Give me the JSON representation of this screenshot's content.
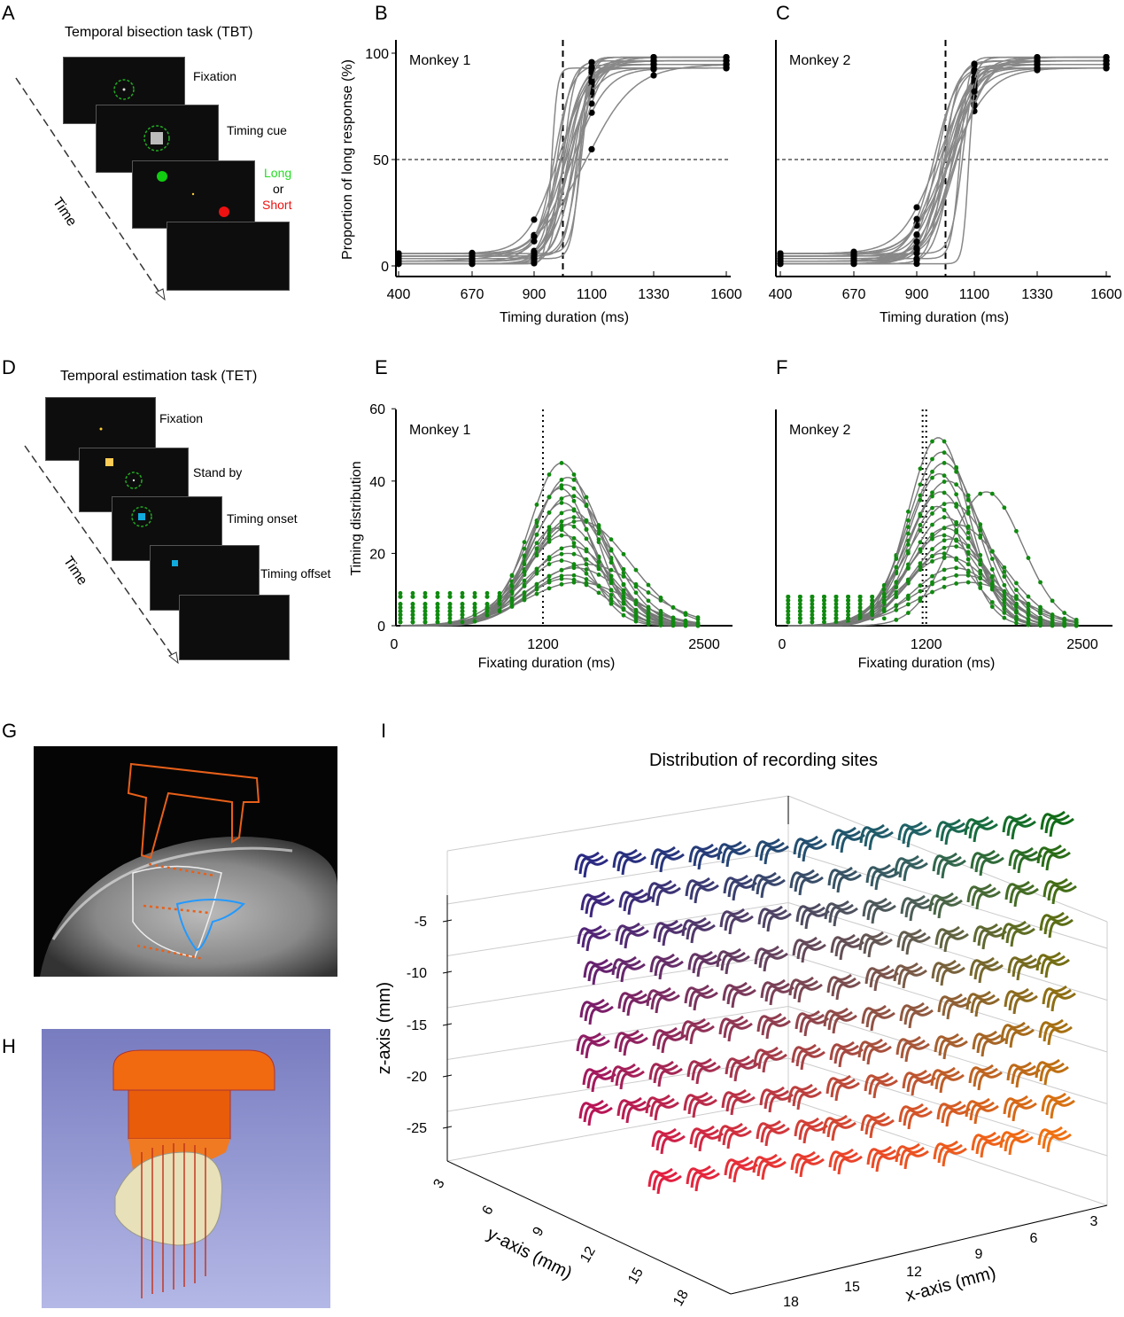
{
  "panels": {
    "A": "A",
    "B": "B",
    "C": "C",
    "D": "D",
    "E": "E",
    "F": "F",
    "G": "G",
    "H": "H",
    "I": "I"
  },
  "tbt": {
    "title": "Temporal bisection task (TBT)",
    "steps": [
      "Fixation",
      "Timing cue"
    ],
    "long": "Long",
    "or": "or",
    "short": "Short",
    "time": "Time",
    "long_color": "#22dd22",
    "short_color": "#ee1111"
  },
  "tet": {
    "title": "Temporal estimation task (TET)",
    "steps": [
      "Fixation",
      "Stand by",
      "Timing onset",
      "Timing offset"
    ],
    "time": "Time"
  },
  "chart_data": [
    {
      "panel": "B",
      "type": "line",
      "annotation": "Monkey 1",
      "xlabel": "Timing duration (ms)",
      "ylabel": "Proportion of long response (%)",
      "xticks": [
        400,
        670,
        900,
        1100,
        1330,
        1600
      ],
      "yticks": [
        0,
        50,
        100
      ],
      "ylim": [
        0,
        100
      ],
      "reference_lines": {
        "x": 1000,
        "y": 50
      },
      "curve_color": "#888888",
      "point_color": "#000000",
      "sigmoid_fits_mu_s": [
        [
          1000,
          30
        ],
        [
          1020,
          40
        ],
        [
          980,
          25
        ],
        [
          1050,
          20
        ],
        [
          1010,
          50
        ],
        [
          1040,
          35
        ],
        [
          990,
          45
        ],
        [
          1060,
          15
        ],
        [
          1030,
          60
        ],
        [
          970,
          30
        ],
        [
          1000,
          20
        ],
        [
          1045,
          45
        ],
        [
          1015,
          30
        ],
        [
          1055,
          25
        ],
        [
          985,
          55
        ],
        [
          1025,
          40
        ],
        [
          1005,
          35
        ],
        [
          1035,
          28
        ],
        [
          995,
          38
        ],
        [
          1065,
          18
        ],
        [
          960,
          10
        ],
        [
          1075,
          90
        ]
      ]
    },
    {
      "panel": "C",
      "type": "line",
      "annotation": "Monkey 2",
      "xlabel": "Timing duration (ms)",
      "ylabel": "",
      "xticks": [
        400,
        670,
        900,
        1100,
        1330,
        1600
      ],
      "yticks": [],
      "ylim": [
        0,
        100
      ],
      "reference_lines": {
        "x": 1000,
        "y": 50
      },
      "curve_color": "#888888",
      "point_color": "#000000",
      "sigmoid_fits_mu_s": [
        [
          990,
          40
        ],
        [
          1010,
          50
        ],
        [
          970,
          35
        ],
        [
          1030,
          45
        ],
        [
          1000,
          60
        ],
        [
          1020,
          30
        ],
        [
          980,
          55
        ],
        [
          1050,
          15
        ],
        [
          1015,
          70
        ],
        [
          960,
          40
        ],
        [
          995,
          25
        ],
        [
          1040,
          50
        ],
        [
          1005,
          45
        ],
        [
          1025,
          35
        ],
        [
          975,
          65
        ],
        [
          1035,
          55
        ],
        [
          985,
          30
        ],
        [
          1010,
          38
        ],
        [
          1000,
          48
        ],
        [
          1060,
          20
        ],
        [
          1080,
          10
        ]
      ]
    },
    {
      "panel": "E",
      "type": "line",
      "annotation": "Monkey 1",
      "xlabel": "Fixating duration (ms)",
      "ylabel": "Timing distribution",
      "xticks": [
        0,
        1200,
        2500
      ],
      "yticks": [
        0,
        20,
        40,
        60
      ],
      "ylim": [
        0,
        60
      ],
      "xlim": [
        0,
        2700
      ],
      "reference_lines": {
        "x": 1200
      },
      "curve_color": "#777777",
      "point_color": "#0f8a0f",
      "gaussian_fits_mu_sd_peak": [
        [
          1350,
          260,
          45
        ],
        [
          1400,
          280,
          41
        ],
        [
          1380,
          300,
          39
        ],
        [
          1420,
          320,
          36
        ],
        [
          1360,
          270,
          34
        ],
        [
          1450,
          350,
          30
        ],
        [
          1390,
          290,
          28
        ],
        [
          1500,
          400,
          29
        ],
        [
          1370,
          310,
          25
        ],
        [
          1430,
          330,
          22
        ],
        [
          1400,
          360,
          20
        ],
        [
          1350,
          300,
          18
        ],
        [
          1460,
          380,
          16
        ],
        [
          1410,
          340,
          14
        ],
        [
          1380,
          320,
          13
        ],
        [
          1550,
          450,
          17
        ],
        [
          1340,
          250,
          38
        ],
        [
          1420,
          300,
          32
        ],
        [
          1480,
          420,
          12
        ],
        [
          1300,
          260,
          27
        ]
      ]
    },
    {
      "panel": "F",
      "type": "line",
      "annotation": "Monkey 2",
      "xlabel": "Fixating duration (ms)",
      "ylabel": "",
      "xticks": [
        0,
        1200,
        2500
      ],
      "yticks": [],
      "ylim": [
        0,
        60
      ],
      "xlim": [
        0,
        2700
      ],
      "reference_lines": {
        "x": [
          1170,
          1200
        ]
      },
      "curve_color": "#777777",
      "point_color": "#0f8a0f",
      "gaussian_fits_mu_sd_peak": [
        [
          1300,
          250,
          52
        ],
        [
          1330,
          280,
          48
        ],
        [
          1350,
          300,
          45
        ],
        [
          1380,
          320,
          40
        ],
        [
          1320,
          270,
          37
        ],
        [
          1400,
          350,
          34
        ],
        [
          1360,
          290,
          30
        ],
        [
          1450,
          380,
          28
        ],
        [
          1340,
          310,
          25
        ],
        [
          1420,
          330,
          22
        ],
        [
          1700,
          300,
          37
        ],
        [
          1310,
          260,
          42
        ],
        [
          1380,
          360,
          19
        ],
        [
          1440,
          340,
          16
        ],
        [
          1290,
          240,
          33
        ],
        [
          1500,
          400,
          14
        ],
        [
          1360,
          300,
          27
        ],
        [
          1410,
          320,
          24
        ],
        [
          1330,
          280,
          20
        ],
        [
          1550,
          420,
          12
        ]
      ]
    },
    {
      "panel": "I",
      "type": "scatter",
      "title": "Distribution of recording sites",
      "xlabel": "x-axis (mm)",
      "ylabel": "y-axis (mm)",
      "zlabel": "z-axis (mm)",
      "xticks": [
        "18",
        "15",
        "12",
        "9",
        "6",
        "3"
      ],
      "yticks": [
        "3",
        "6",
        "9",
        "12",
        "15",
        "18"
      ],
      "zticks": [
        "-5",
        "-10",
        "-15",
        "-20",
        "-25"
      ],
      "colors": {
        "top_left": "#2a2a82",
        "top_right": "#1a7a5a",
        "bottom_left": "#e0104a",
        "bottom_right": "#f07010",
        "right": "#106a10"
      }
    }
  ]
}
